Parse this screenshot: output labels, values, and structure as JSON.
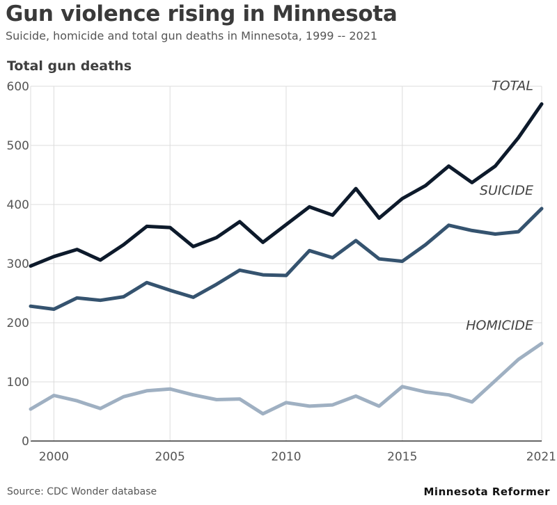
{
  "header": {
    "title": "Gun violence rising in Minnesota",
    "subtitle": "Suicide, homicide and total gun deaths in Minnesota, 1999 -- 2021",
    "y_axis_title": "Total gun deaths"
  },
  "footer": {
    "source": "Source: CDC Wonder database",
    "brand": "Minnesota Reformer"
  },
  "colors": {
    "total": "#0d1a2b",
    "suicide": "#35536f",
    "homicide": "#9fb0c2",
    "grid": "#dcdcdc",
    "axis": "#333333"
  },
  "chart_data": {
    "type": "line",
    "title": "Gun violence rising in Minnesota",
    "subtitle": "Suicide, homicide and total gun deaths in Minnesota, 1999 -- 2021",
    "ylabel": "Total gun deaths",
    "xlim": [
      1999,
      2021
    ],
    "ylim": [
      0,
      600
    ],
    "x_ticks": [
      2000,
      2005,
      2010,
      2015,
      2021
    ],
    "y_ticks": [
      0,
      100,
      200,
      300,
      400,
      500,
      600
    ],
    "grid": true,
    "x": [
      1999,
      2000,
      2001,
      2002,
      2003,
      2004,
      2005,
      2006,
      2007,
      2008,
      2009,
      2010,
      2011,
      2012,
      2013,
      2014,
      2015,
      2016,
      2017,
      2018,
      2019,
      2020,
      2021
    ],
    "series": [
      {
        "key": "total",
        "name": "TOTAL",
        "values": [
          296,
          312,
          324,
          306,
          332,
          363,
          361,
          329,
          344,
          371,
          336,
          366,
          396,
          382,
          427,
          377,
          410,
          432,
          465,
          437,
          465,
          513,
          570
        ]
      },
      {
        "key": "suicide",
        "name": "SUICIDE",
        "values": [
          228,
          223,
          242,
          238,
          244,
          268,
          255,
          243,
          265,
          289,
          281,
          280,
          322,
          310,
          339,
          308,
          304,
          332,
          365,
          356,
          350,
          354,
          393
        ]
      },
      {
        "key": "homicide",
        "name": "HOMICIDE",
        "values": [
          54,
          77,
          68,
          55,
          75,
          85,
          88,
          78,
          70,
          71,
          46,
          65,
          59,
          61,
          76,
          59,
          92,
          83,
          78,
          66,
          102,
          138,
          165
        ]
      }
    ]
  }
}
